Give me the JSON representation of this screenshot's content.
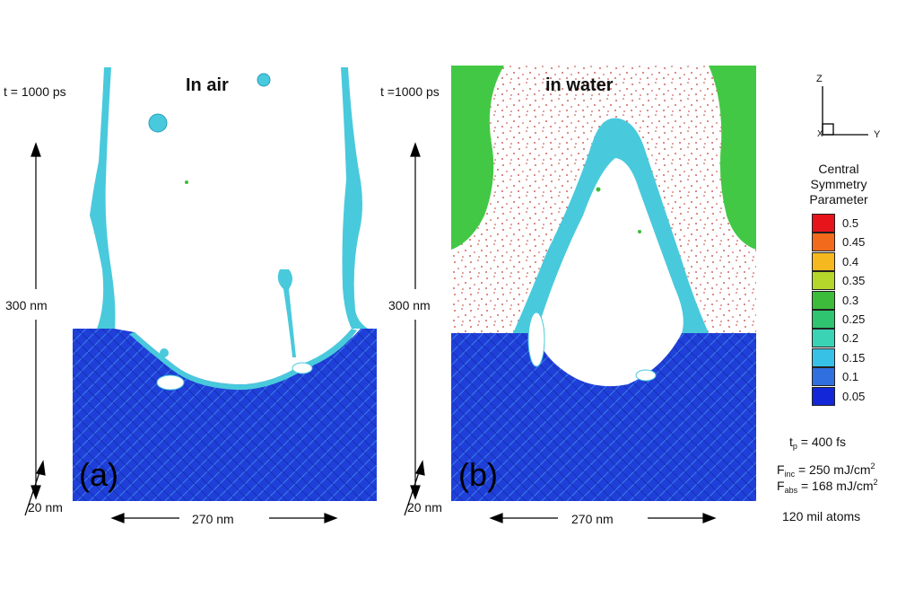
{
  "panels": [
    {
      "time_label": "t = 1000 ps",
      "medium_label": "In air",
      "letter": "(a)",
      "height_label": "300 nm",
      "depth_label": "20 nm",
      "width_label": "270 nm"
    },
    {
      "time_label": "t =1000 ps",
      "medium_label": "in water",
      "letter": "(b)",
      "height_label": "300 nm",
      "depth_label": "20 nm",
      "width_label": "270 nm"
    }
  ],
  "axes_triad": {
    "z": "Z",
    "y": "Y",
    "x": "X"
  },
  "legend": {
    "title_lines": [
      "Central",
      "Symmetry",
      "Parameter"
    ],
    "entries": [
      {
        "label": "0.5",
        "color": "#e8141b"
      },
      {
        "label": "0.45",
        "color": "#f26a1b"
      },
      {
        "label": "0.4",
        "color": "#f5b81e"
      },
      {
        "label": "0.35",
        "color": "#b5d62a"
      },
      {
        "label": "0.3",
        "color": "#3dbb3a"
      },
      {
        "label": "0.25",
        "color": "#2fc46f"
      },
      {
        "label": "0.2",
        "color": "#3ad3b5"
      },
      {
        "label": "0.15",
        "color": "#38c1e6"
      },
      {
        "label": "0.1",
        "color": "#2f6fe0"
      },
      {
        "label": "0.05",
        "color": "#1427d8"
      }
    ]
  },
  "parameters": {
    "tp": {
      "symbol": "t",
      "sub": "p",
      "value": " = 400 fs"
    },
    "finc": {
      "symbol": "F",
      "sub": "inc",
      "value": " = 250 mJ/cm",
      "sup": "2"
    },
    "fabs": {
      "symbol": "F",
      "sub": "abs",
      "value": " = 168 mJ/cm",
      "sup": "2"
    },
    "atoms": "120 mil atoms"
  },
  "colors": {
    "substrate": "#1f3fd8",
    "liquid": "#49c9dc",
    "water": "#43c845",
    "vapor_dots": "#c0392b"
  }
}
